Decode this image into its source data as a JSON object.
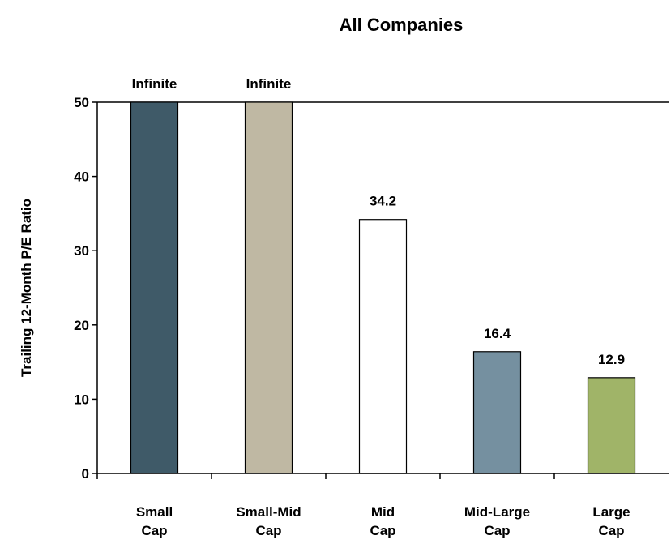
{
  "chart_data": {
    "type": "bar",
    "title": "All Companies",
    "ylabel": "Trailing 12-Month P/E Ratio",
    "xlabel": "",
    "ylim": [
      0,
      50
    ],
    "yticks": [
      0,
      10,
      20,
      30,
      40,
      50
    ],
    "grid": false,
    "categories": [
      [
        "Small",
        "Cap"
      ],
      [
        "Small-Mid",
        "Cap"
      ],
      [
        "Mid",
        "Cap"
      ],
      [
        "Mid-Large",
        "Cap"
      ],
      [
        "Large",
        "Cap"
      ]
    ],
    "values": [
      50,
      50,
      34.2,
      16.4,
      12.9
    ],
    "data_labels": [
      "Infinite",
      "Infinite",
      "34.2",
      "16.4",
      "12.9"
    ],
    "colors": [
      "#3f5a68",
      "#bfb8a3",
      "#ffffff",
      "#7590a0",
      "#a0b468"
    ]
  }
}
